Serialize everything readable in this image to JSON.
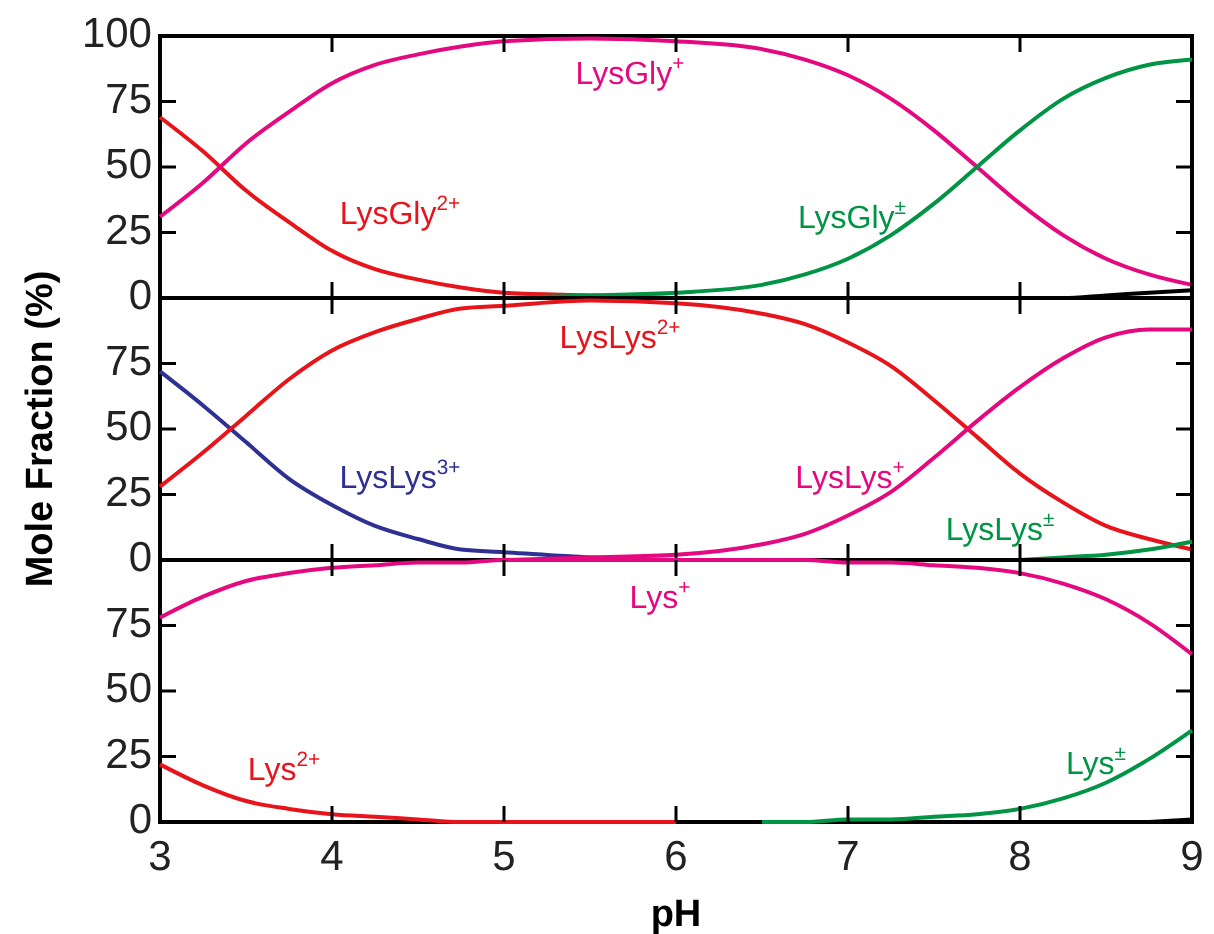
{
  "chart_data": [
    {
      "type": "line",
      "xlim": [
        3,
        9
      ],
      "xticks": [
        3,
        4,
        5,
        6,
        7,
        8,
        9
      ],
      "ylim": [
        0,
        100
      ],
      "yticks": [
        0,
        25,
        50,
        75,
        100
      ],
      "tick_labels": "y",
      "x": [
        3,
        3.25,
        3.5,
        3.75,
        4,
        4.25,
        4.5,
        4.75,
        5,
        5.5,
        6,
        6.5,
        6.75,
        7,
        7.25,
        7.5,
        7.75,
        8,
        8.25,
        8.5,
        8.75,
        9
      ],
      "series": [
        {
          "name": "LysGly$^{2+}$",
          "color": "#e8141b",
          "values": [
            69,
            56,
            41,
            29,
            18,
            11,
            7,
            4,
            2,
            1,
            0,
            null,
            null,
            null,
            null,
            null,
            null,
            null,
            null,
            null,
            null,
            null
          ]
        },
        {
          "name": "LysGly$^{+}$",
          "color": "#e5097f",
          "values": [
            31,
            44,
            59,
            71,
            82,
            89,
            93,
            96,
            98,
            99,
            98,
            95,
            91,
            85,
            76,
            64,
            50,
            36,
            24,
            15,
            9,
            5
          ]
        },
        {
          "name": "LysGly$^{±}$",
          "color": "#009444",
          "values": [
            null,
            null,
            null,
            null,
            null,
            null,
            null,
            null,
            0,
            1,
            2,
            5,
            9,
            15,
            24,
            36,
            50,
            64,
            76,
            84,
            89,
            91
          ]
        },
        {
          "color": "#000000",
          "values": [
            null,
            null,
            null,
            null,
            null,
            null,
            null,
            null,
            null,
            null,
            null,
            null,
            null,
            null,
            null,
            null,
            null,
            0,
            0,
            1,
            2,
            3
          ]
        }
      ]
    },
    {
      "type": "line",
      "ylabel": "Mole Fraction (%)",
      "xlim": [
        3,
        9
      ],
      "xticks": [
        3,
        4,
        5,
        6,
        7,
        8,
        9
      ],
      "ylim": [
        0,
        100
      ],
      "yticks": [
        0,
        25,
        50,
        75
      ],
      "tick_labels": "y",
      "x": [
        3,
        3.25,
        3.5,
        3.75,
        4,
        4.25,
        4.5,
        4.75,
        5,
        5.5,
        6,
        6.5,
        6.75,
        7,
        7.25,
        7.5,
        7.75,
        8,
        8.25,
        8.5,
        8.75,
        9
      ],
      "series": [
        {
          "name": "LysLys$^{3+}$",
          "color": "#2e3192",
          "values": [
            72,
            59,
            45,
            31,
            21,
            13,
            8,
            4,
            3,
            1,
            0,
            null,
            null,
            null,
            null,
            null,
            null,
            null,
            null,
            null,
            null,
            null
          ]
        },
        {
          "name": "LysLys$^{2+}$",
          "color": "#e8141b",
          "values": [
            28,
            41,
            55,
            69,
            80,
            87,
            92,
            96,
            97,
            99,
            98,
            94,
            90,
            83,
            74,
            61,
            47,
            33,
            22,
            13,
            8,
            4
          ]
        },
        {
          "name": "LysLys$^{+}$",
          "color": "#e5097f",
          "values": [
            null,
            null,
            null,
            null,
            null,
            null,
            null,
            null,
            0,
            1,
            2,
            6,
            10,
            17,
            26,
            39,
            53,
            66,
            77,
            85,
            88,
            88
          ]
        },
        {
          "name": "LysLys$^{±}$",
          "color": "#009444",
          "values": [
            null,
            null,
            null,
            null,
            null,
            null,
            null,
            null,
            null,
            null,
            null,
            null,
            null,
            null,
            null,
            null,
            null,
            0,
            1,
            2,
            4,
            7
          ]
        }
      ]
    },
    {
      "type": "line",
      "xlabel": "pH",
      "xlim": [
        3,
        9
      ],
      "xticks": [
        3,
        4,
        5,
        6,
        7,
        8,
        9
      ],
      "ylim": [
        0,
        100
      ],
      "yticks": [
        0,
        25,
        50,
        75
      ],
      "x": [
        3,
        3.25,
        3.5,
        3.75,
        4,
        4.25,
        4.5,
        4.75,
        5,
        5.5,
        6,
        6.5,
        6.75,
        7,
        7.25,
        7.5,
        7.75,
        8,
        8.25,
        8.5,
        8.75,
        9
      ],
      "series": [
        {
          "name": "Lys$^{2+}$",
          "color": "#e8141b",
          "values": [
            22,
            14,
            8,
            5,
            3,
            2,
            1,
            0,
            0,
            0,
            0,
            null,
            null,
            null,
            null,
            null,
            null,
            null,
            null,
            null,
            null,
            null
          ]
        },
        {
          "name": "Lys$^{+}$",
          "color": "#e5097f",
          "values": [
            78,
            86,
            92,
            95,
            97,
            98,
            99,
            99,
            100,
            100,
            100,
            100,
            100,
            99,
            99,
            98,
            97,
            95,
            91,
            85,
            76,
            64
          ]
        },
        {
          "name": "Lys$^{±}$",
          "color": "#009444",
          "values": [
            null,
            null,
            null,
            null,
            null,
            null,
            null,
            null,
            null,
            null,
            null,
            0,
            0,
            1,
            1,
            2,
            3,
            5,
            9,
            15,
            24,
            35
          ]
        },
        {
          "color": "#000000",
          "values": [
            null,
            null,
            null,
            null,
            null,
            null,
            null,
            null,
            null,
            null,
            null,
            null,
            null,
            null,
            null,
            null,
            null,
            null,
            null,
            null,
            0,
            1
          ]
        }
      ]
    }
  ]
}
